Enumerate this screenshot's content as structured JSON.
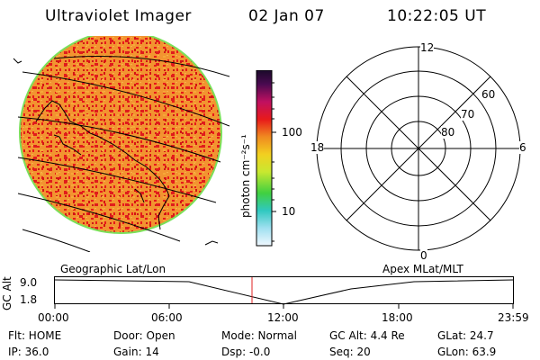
{
  "header": {
    "instrument": "Ultraviolet Imager",
    "date": "02 Jan 07",
    "time": "10:22:05 UT"
  },
  "colorbar": {
    "label": "photon cm⁻²s⁻¹",
    "tick_100": "100",
    "tick_10": "10"
  },
  "polar_plot": {
    "mlt_top": "12",
    "mlt_left": "18",
    "mlt_right": "6",
    "mlt_bottom": "0",
    "lat_60": "60",
    "lat_70": "70",
    "lat_80": "80"
  },
  "panel_labels": {
    "left": "Geographic Lat/Lon",
    "right": "Apex MLat/MLT"
  },
  "altitude_plot": {
    "axis_label": "GC Alt",
    "y_max": "9.0",
    "y_min": "1.8",
    "x_ticks": [
      "00:00",
      "06:00",
      "12:00",
      "18:00",
      "23:59"
    ]
  },
  "status": {
    "filter": "Flt: HOME",
    "door": "Door: Open",
    "mode": "Mode: Normal",
    "gc_alt": "GC Alt: 4.4 Re",
    "glat": "GLat:  24.7",
    "ip": "IP: 36.0",
    "gain": "Gain: 14",
    "dsp": "Dsp:   -0.0",
    "seq": "Seq: 20",
    "glon": "GLon:  63.9"
  },
  "colors": {
    "disk_base": "#f29430",
    "disk_spot": "#e81a1a",
    "disk_rim": "#7be05a",
    "marker_line": "#e02020"
  }
}
